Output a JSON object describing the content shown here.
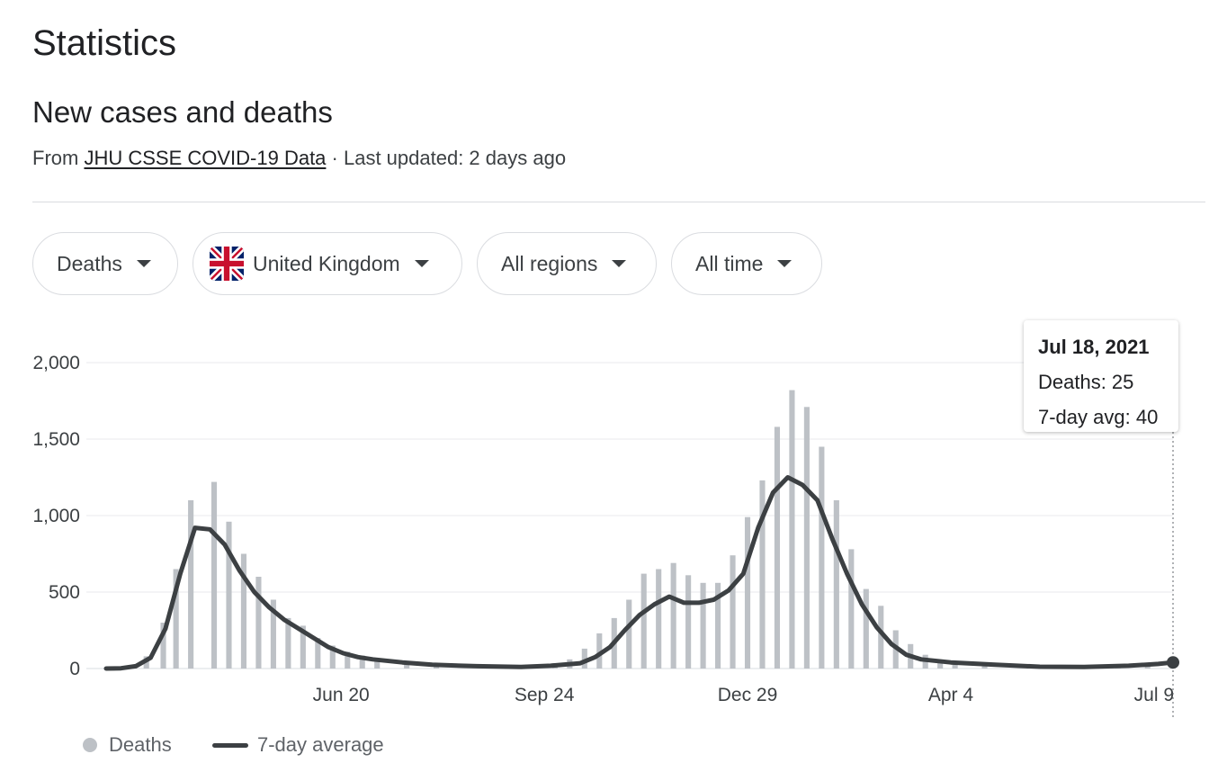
{
  "page": {
    "title": "Statistics",
    "section_title": "New cases and deaths",
    "source_prefix": "From",
    "source_link": "JHU CSSE COVID-19 Data",
    "source_suffix": "· Last updated: 2 days ago"
  },
  "filters": {
    "metric": "Deaths",
    "country": "United Kingdom",
    "region": "All regions",
    "range": "All time"
  },
  "tooltip": {
    "date": "Jul 18, 2021",
    "deaths": "Deaths: 25",
    "avg": "7-day avg: 40"
  },
  "colors": {
    "bars": "#bdc1c6",
    "line": "#3c4043",
    "grid": "#e8eaed",
    "axis": "#dadce0"
  },
  "icons": {
    "flag": "uk-flag-icon",
    "dropdown": "caret-down-icon"
  },
  "legend": {
    "bars": "Deaths",
    "line": "7-day average"
  },
  "chart_data": {
    "type": "bar",
    "x_start": "2020-03-01",
    "x_end": "2021-07-18",
    "ylim": [
      0,
      2000
    ],
    "y_ticks": [
      "0",
      "500",
      "1,000",
      "1,500",
      "2,000"
    ],
    "x_ticks": [
      "Jun 20",
      "Sep 24",
      "Dec 29",
      "Apr 4",
      "Jul 9"
    ],
    "series": [
      {
        "name": "Deaths",
        "kind": "bar",
        "points": [
          [
            "2020-03-10",
            5
          ],
          [
            "2020-03-20",
            80
          ],
          [
            "2020-03-28",
            300
          ],
          [
            "2020-04-03",
            650
          ],
          [
            "2020-04-10",
            1100
          ],
          [
            "2020-04-21",
            1220
          ],
          [
            "2020-04-28",
            960
          ],
          [
            "2020-05-05",
            750
          ],
          [
            "2020-05-12",
            600
          ],
          [
            "2020-05-19",
            450
          ],
          [
            "2020-05-26",
            330
          ],
          [
            "2020-06-02",
            280
          ],
          [
            "2020-06-09",
            200
          ],
          [
            "2020-06-16",
            150
          ],
          [
            "2020-06-23",
            110
          ],
          [
            "2020-06-30",
            85
          ],
          [
            "2020-07-07",
            60
          ],
          [
            "2020-07-21",
            40
          ],
          [
            "2020-08-04",
            25
          ],
          [
            "2020-08-25",
            15
          ],
          [
            "2020-09-15",
            20
          ],
          [
            "2020-09-29",
            35
          ],
          [
            "2020-10-06",
            60
          ],
          [
            "2020-10-13",
            130
          ],
          [
            "2020-10-20",
            230
          ],
          [
            "2020-10-27",
            330
          ],
          [
            "2020-11-03",
            450
          ],
          [
            "2020-11-10",
            620
          ],
          [
            "2020-11-17",
            650
          ],
          [
            "2020-11-24",
            690
          ],
          [
            "2020-12-01",
            610
          ],
          [
            "2020-12-08",
            560
          ],
          [
            "2020-12-15",
            560
          ],
          [
            "2020-12-22",
            740
          ],
          [
            "2020-12-29",
            990
          ],
          [
            "2021-01-05",
            1230
          ],
          [
            "2021-01-12",
            1580
          ],
          [
            "2021-01-19",
            1820
          ],
          [
            "2021-01-26",
            1710
          ],
          [
            "2021-02-02",
            1450
          ],
          [
            "2021-02-09",
            1100
          ],
          [
            "2021-02-16",
            780
          ],
          [
            "2021-02-23",
            520
          ],
          [
            "2021-03-02",
            410
          ],
          [
            "2021-03-09",
            250
          ],
          [
            "2021-03-16",
            160
          ],
          [
            "2021-03-23",
            90
          ],
          [
            "2021-03-30",
            55
          ],
          [
            "2021-04-06",
            40
          ],
          [
            "2021-04-20",
            25
          ],
          [
            "2021-05-11",
            10
          ],
          [
            "2021-06-01",
            8
          ],
          [
            "2021-06-22",
            15
          ],
          [
            "2021-07-06",
            30
          ],
          [
            "2021-07-18",
            25
          ]
        ]
      },
      {
        "name": "7-day average",
        "kind": "line",
        "points": [
          [
            "2020-03-01",
            0
          ],
          [
            "2020-03-08",
            2
          ],
          [
            "2020-03-15",
            15
          ],
          [
            "2020-03-22",
            70
          ],
          [
            "2020-03-29",
            260
          ],
          [
            "2020-04-05",
            620
          ],
          [
            "2020-04-12",
            920
          ],
          [
            "2020-04-19",
            910
          ],
          [
            "2020-04-26",
            810
          ],
          [
            "2020-05-03",
            640
          ],
          [
            "2020-05-10",
            500
          ],
          [
            "2020-05-17",
            400
          ],
          [
            "2020-05-24",
            320
          ],
          [
            "2020-05-31",
            260
          ],
          [
            "2020-06-07",
            200
          ],
          [
            "2020-06-14",
            140
          ],
          [
            "2020-06-21",
            100
          ],
          [
            "2020-06-28",
            75
          ],
          [
            "2020-07-05",
            60
          ],
          [
            "2020-07-19",
            40
          ],
          [
            "2020-08-02",
            25
          ],
          [
            "2020-08-23",
            15
          ],
          [
            "2020-09-13",
            10
          ],
          [
            "2020-09-27",
            18
          ],
          [
            "2020-10-11",
            35
          ],
          [
            "2020-10-18",
            75
          ],
          [
            "2020-10-25",
            140
          ],
          [
            "2020-11-01",
            250
          ],
          [
            "2020-11-08",
            350
          ],
          [
            "2020-11-15",
            420
          ],
          [
            "2020-11-22",
            470
          ],
          [
            "2020-11-29",
            430
          ],
          [
            "2020-12-06",
            430
          ],
          [
            "2020-12-13",
            450
          ],
          [
            "2020-12-20",
            510
          ],
          [
            "2020-12-27",
            620
          ],
          [
            "2021-01-03",
            920
          ],
          [
            "2021-01-10",
            1150
          ],
          [
            "2021-01-17",
            1250
          ],
          [
            "2021-01-24",
            1200
          ],
          [
            "2021-01-31",
            1100
          ],
          [
            "2021-02-07",
            850
          ],
          [
            "2021-02-14",
            620
          ],
          [
            "2021-02-21",
            420
          ],
          [
            "2021-02-28",
            270
          ],
          [
            "2021-03-07",
            160
          ],
          [
            "2021-03-14",
            90
          ],
          [
            "2021-03-21",
            60
          ],
          [
            "2021-04-04",
            40
          ],
          [
            "2021-04-25",
            25
          ],
          [
            "2021-05-16",
            12
          ],
          [
            "2021-06-06",
            10
          ],
          [
            "2021-06-27",
            18
          ],
          [
            "2021-07-11",
            30
          ],
          [
            "2021-07-18",
            40
          ]
        ]
      }
    ],
    "highlight": "2021-07-18"
  }
}
